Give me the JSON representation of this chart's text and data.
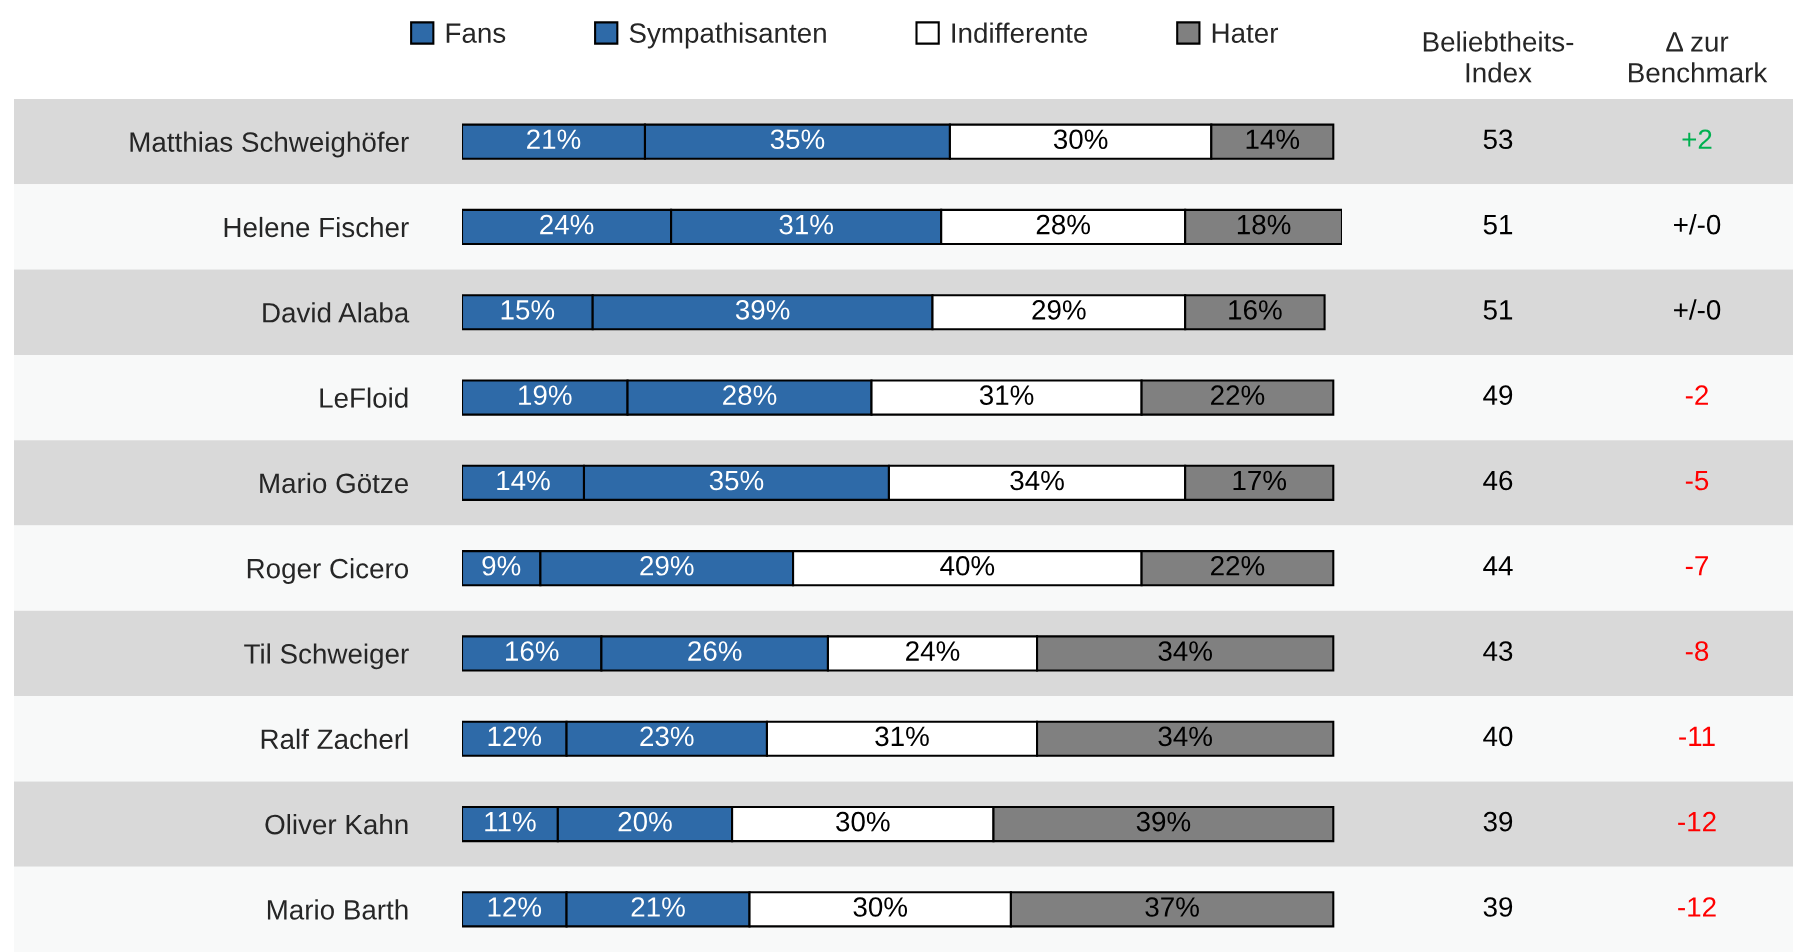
{
  "chart_data": [
    {
      "type": "bar",
      "orientation": "horizontal",
      "stacked": true,
      "categories": [
        "Matthias Schweighöfer",
        "Helene Fischer",
        "David Alaba",
        "LeFloid",
        "Mario Götze",
        "Roger Cicero",
        "Til Schweiger",
        "Ralf Zacherl",
        "Oliver Kahn",
        "Mario Barth"
      ],
      "series": [
        {
          "name": "Fans",
          "color": "#2e6aa8",
          "values": [
            21,
            24,
            15,
            19,
            14,
            9,
            16,
            12,
            11,
            12
          ],
          "value_labels": [
            "21%",
            "24%",
            "15%",
            "19%",
            "14%",
            "9%",
            "16%",
            "12%",
            "11%",
            "12%"
          ]
        },
        {
          "name": "Sympathisanten",
          "color": "#2e6aa8",
          "values": [
            35,
            31,
            39,
            28,
            35,
            29,
            26,
            23,
            20,
            21
          ],
          "value_labels": [
            "35%",
            "31%",
            "39%",
            "28%",
            "35%",
            "29%",
            "26%",
            "23%",
            "20%",
            "21%"
          ]
        },
        {
          "name": "Indifferente",
          "color": "#ffffff",
          "values": [
            30,
            28,
            29,
            31,
            34,
            40,
            24,
            31,
            30,
            30
          ],
          "value_labels": [
            "30%",
            "28%",
            "29%",
            "31%",
            "34%",
            "40%",
            "24%",
            "31%",
            "30%",
            "30%"
          ]
        },
        {
          "name": "Hater",
          "color": "#808080",
          "values": [
            14,
            18,
            16,
            22,
            17,
            22,
            34,
            34,
            39,
            37
          ],
          "value_labels": [
            "14%",
            "18%",
            "16%",
            "22%",
            "17%",
            "22%",
            "34%",
            "34%",
            "39%",
            "37%"
          ]
        }
      ],
      "xlim": [
        0,
        101
      ],
      "tick_labels": "y",
      "legend": "top"
    },
    {
      "type": "other",
      "title": "Beliebtheits-\nIndex",
      "categories": [
        null,
        null,
        null,
        null,
        null,
        null,
        null,
        null,
        null,
        null
      ],
      "values": [
        53,
        51,
        51,
        49,
        46,
        44,
        43,
        40,
        39,
        39
      ],
      "data_labels": true
    },
    {
      "type": "other",
      "title": "Δ zur\nBenchmark",
      "categories": [
        null,
        null,
        null,
        null,
        null,
        null,
        null,
        null,
        null,
        null
      ],
      "values": [
        2,
        0,
        0,
        -2,
        -5,
        -7,
        -8,
        -11,
        -12,
        -12
      ],
      "value_labels": [
        "+2",
        "+/-0",
        "+/-0",
        "-2",
        "-5",
        "-7",
        "-8",
        "-11",
        "-12",
        "-12"
      ],
      "colors": [
        "#00b050",
        "#000000",
        "#000000",
        "#ff0000",
        "#ff0000",
        "#ff0000",
        "#ff0000",
        "#ff0000",
        "#ff0000",
        "#ff0000"
      ]
    }
  ]
}
